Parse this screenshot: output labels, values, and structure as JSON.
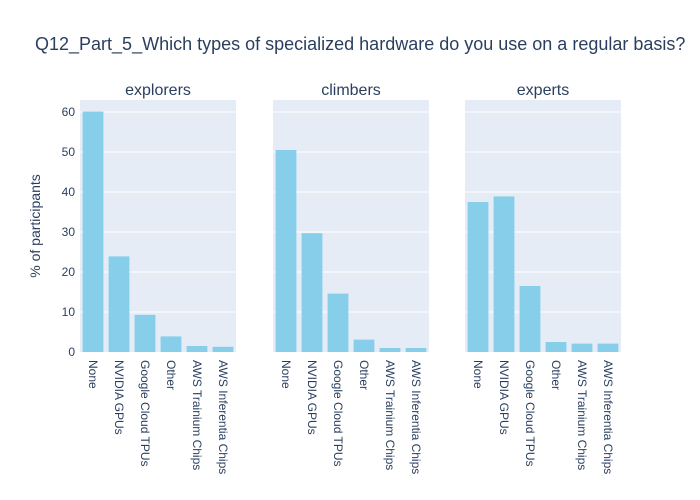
{
  "chart_data": {
    "type": "bar",
    "title": "Q12_Part_5_Which types of specialized hardware do you use on a regular basis?",
    "ylabel": "% of participants",
    "ylim": [
      0,
      63
    ],
    "yticks": [
      0,
      10,
      20,
      30,
      40,
      50,
      60
    ],
    "categories": [
      "None",
      "NVIDIA GPUs",
      "Google Cloud TPUs",
      "Other",
      "AWS Trainium Chips",
      "AWS Inferentia Chips"
    ],
    "bar_color": "#87CEEB",
    "panels": [
      {
        "name": "explorers",
        "values": [
          60.1,
          23.9,
          9.3,
          3.9,
          1.5,
          1.3
        ]
      },
      {
        "name": "climbers",
        "values": [
          50.5,
          29.7,
          14.6,
          3.1,
          1.0,
          1.0
        ]
      },
      {
        "name": "experts",
        "values": [
          37.5,
          38.9,
          16.5,
          2.5,
          2.1,
          2.1
        ]
      }
    ]
  }
}
